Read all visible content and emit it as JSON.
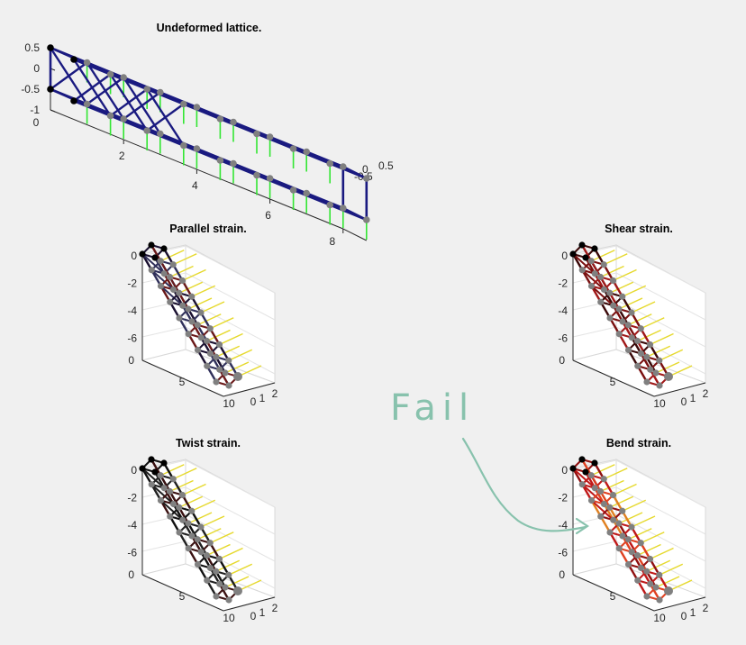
{
  "colors": {
    "background": "#f0f0f0",
    "lattice_line": "#1a1a80",
    "node_fixed": "#000000",
    "node_free": "#808080",
    "force_arrow": "#33e633",
    "load_arrow": "#e6d92e",
    "annotation": "#88c2ad"
  },
  "annotation": {
    "text": "Fail"
  },
  "chart_data": [
    {
      "type": "3d-lattice",
      "title": "Undeformed lattice.",
      "grid": false,
      "xlim": [
        0,
        8
      ],
      "ylim": [
        -0.5,
        0.5
      ],
      "zlim": [
        -1,
        0.5
      ],
      "x_ticks": [
        "2",
        "4",
        "6",
        "8"
      ],
      "y_ticks": [
        "-0.5",
        "0",
        "0.5"
      ],
      "z_ticks": [
        "0.5",
        "0",
        "-0.5",
        "-1"
      ],
      "corner_tick": "0",
      "nodes_x": [
        0,
        1,
        2,
        3,
        4,
        5,
        6,
        7,
        8
      ],
      "nodes_y": [
        -0.5,
        0.5
      ],
      "nodes_z": [
        -0.5,
        0.5
      ],
      "fixed_nodes_x": [
        0
      ],
      "diagonal_cells": [
        0,
        1,
        2
      ]
    },
    {
      "type": "3d-lattice",
      "title": "Parallel strain.",
      "grid": true,
      "y_ticks": [
        "0",
        "1",
        "2"
      ],
      "z_ticks": [
        "0",
        "-2",
        "-4",
        "-6"
      ],
      "x_ticks": [
        "0",
        "5",
        "10"
      ],
      "strain_colour": "dark-blue",
      "highlight_cells": []
    },
    {
      "type": "3d-lattice",
      "title": "Shear strain.",
      "grid": true,
      "y_ticks": [
        "0",
        "1",
        "2"
      ],
      "z_ticks": [
        "0",
        "-2",
        "-4",
        "-6"
      ],
      "x_ticks": [
        "0",
        "5",
        "10"
      ],
      "strain_colour": "dark-red",
      "highlight_cells": []
    },
    {
      "type": "3d-lattice",
      "title": "Twist strain.",
      "grid": true,
      "y_ticks": [
        "0",
        "1",
        "2"
      ],
      "z_ticks": [
        "0",
        "-2",
        "-4",
        "-6"
      ],
      "x_ticks": [
        "0",
        "5",
        "10"
      ],
      "strain_colour": "black",
      "highlight_cells": []
    },
    {
      "type": "3d-lattice",
      "title": "Bend strain.",
      "grid": true,
      "y_ticks": [
        "0",
        "1",
        "2"
      ],
      "z_ticks": [
        "0",
        "-2",
        "-4",
        "-6"
      ],
      "x_ticks": [
        "0",
        "5",
        "10"
      ],
      "strain_colour": "red",
      "highlight_cells": [
        2,
        3
      ]
    }
  ]
}
